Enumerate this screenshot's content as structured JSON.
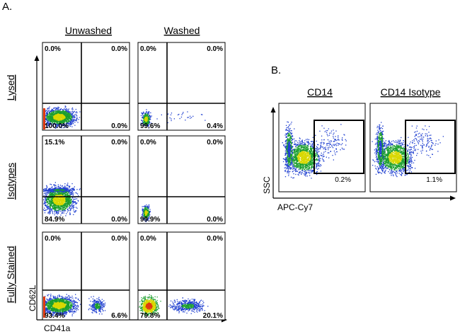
{
  "panel_labels": {
    "a": "A.",
    "b": "B."
  },
  "panel_a": {
    "columns": [
      "Unwashed",
      "Washed"
    ],
    "rows": [
      "Lysed",
      "Isotypes",
      "Fully Stained"
    ],
    "x_axis_label": "CD41a",
    "y_axis_label": "CD62L"
  },
  "panel_b": {
    "columns": [
      "CD14",
      "CD14 Isotype"
    ],
    "x_axis_label": "APC-Cy7",
    "y_axis_label": "SSC"
  },
  "chart_data": [
    {
      "type": "scatter",
      "title": "",
      "xlabel": "CD41a",
      "ylabel": "CD62L",
      "description_quadrants_order": [
        "upper-left",
        "upper-right",
        "lower-left",
        "lower-right"
      ],
      "plots": [
        {
          "row": "Lysed",
          "column": "Unwashed",
          "quadrants": [
            "0.0%",
            "0.0%",
            "100.0%",
            "0.0%"
          ]
        },
        {
          "row": "Lysed",
          "column": "Washed",
          "quadrants": [
            "0.0%",
            "0.0%",
            "99.6%",
            "0.4%"
          ]
        },
        {
          "row": "Isotypes",
          "column": "Unwashed",
          "quadrants": [
            "15.1%",
            "0.0%",
            "84.9%",
            "0.0%"
          ]
        },
        {
          "row": "Isotypes",
          "column": "Washed",
          "quadrants": [
            "0.0%",
            "0.0%",
            "99.9%",
            "0.0%"
          ]
        },
        {
          "row": "Fully Stained",
          "column": "Unwashed",
          "quadrants": [
            "0.0%",
            "0.0%",
            "93.4%",
            "6.6%"
          ]
        },
        {
          "row": "Fully Stained",
          "column": "Washed",
          "quadrants": [
            "0.0%",
            "0.0%",
            "79.8%",
            "20.1%"
          ]
        }
      ]
    },
    {
      "type": "scatter",
      "title": "",
      "xlabel": "APC-Cy7",
      "ylabel": "SSC",
      "plots": [
        {
          "column": "CD14",
          "gate_percent": "0.2%"
        },
        {
          "column": "CD14 Isotype",
          "gate_percent": "1.1%"
        }
      ]
    }
  ],
  "colors": {
    "dense": "#1b9e2e",
    "core": "#d8d800",
    "sparse": "#1f3fd0",
    "hot": "#e03a10"
  }
}
